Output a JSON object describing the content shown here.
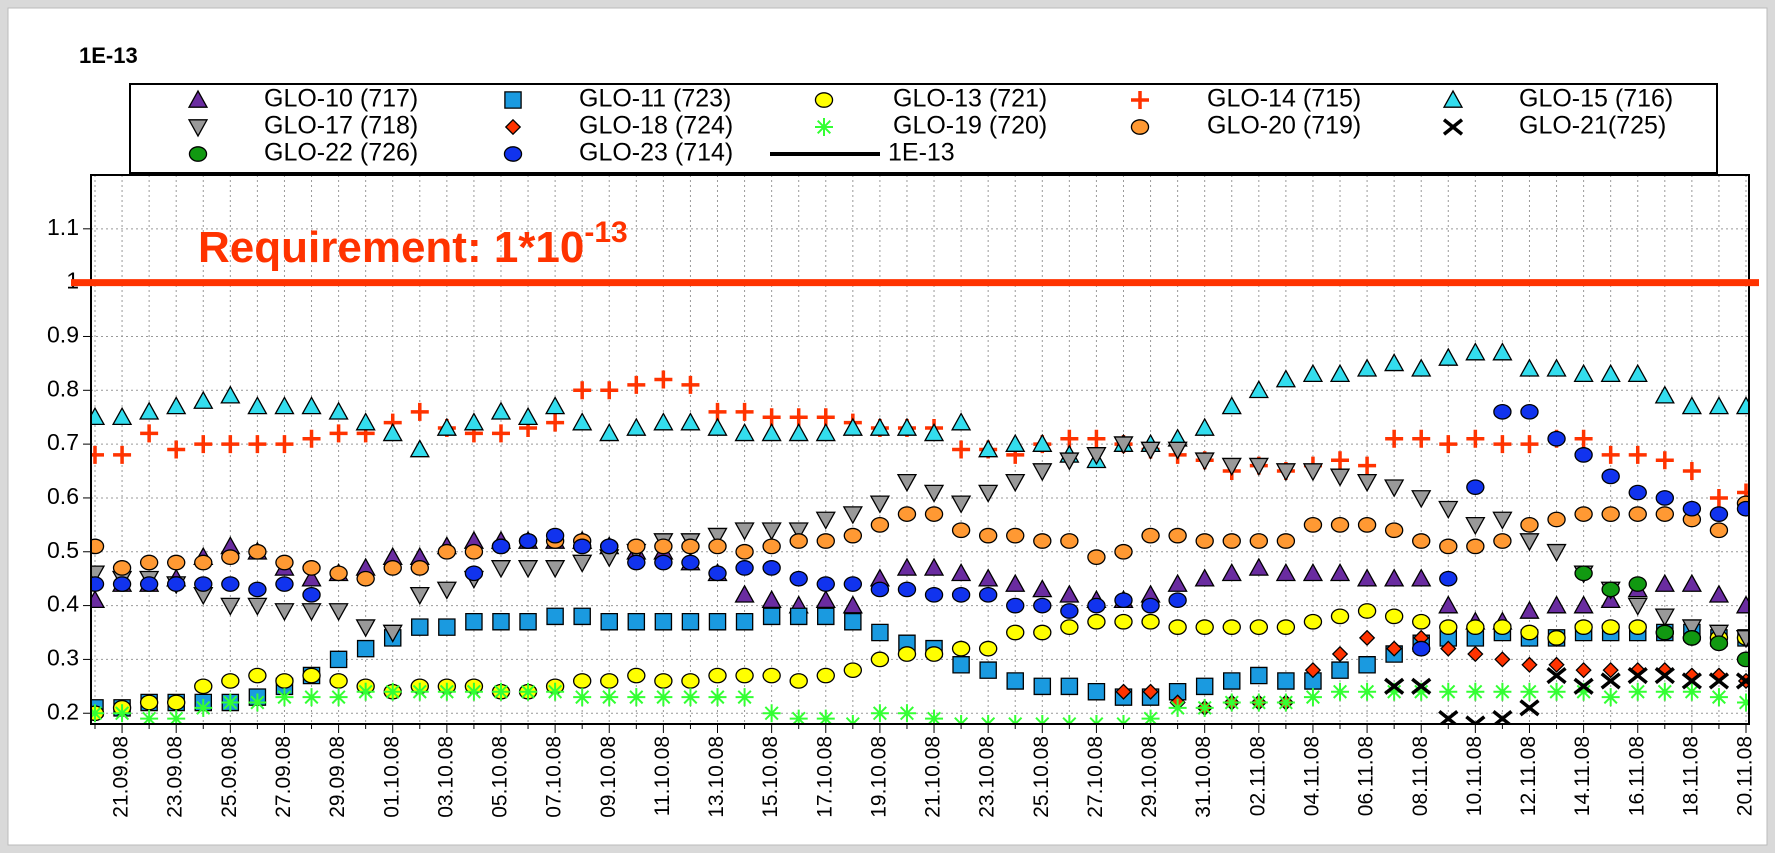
{
  "chart_data": {
    "type": "scatter",
    "y_unit": "1E-13",
    "annotation": {
      "text": "Requirement: 1*10",
      "superscript": "-13",
      "value": 1,
      "color": "#ff3300"
    },
    "reference_legend": {
      "name": "1E-13",
      "color": "#000000"
    },
    "categories": [
      null,
      "21.09.08",
      null,
      "23.09.08",
      null,
      "25.09.08",
      null,
      "27.09.08",
      null,
      "29.09.08",
      null,
      "01.10.08",
      null,
      "03.10.08",
      null,
      "05.10.08",
      null,
      "07.10.08",
      null,
      "09.10.08",
      null,
      "11.10.08",
      null,
      "13.10.08",
      null,
      "15.10.08",
      null,
      "17.10.08",
      null,
      "19.10.08",
      null,
      "21.10.08",
      null,
      "23.10.08",
      null,
      "25.10.08",
      null,
      "27.10.08",
      null,
      "29.10.08",
      null,
      "31.10.08",
      null,
      "02.11.08",
      null,
      "04.11.08",
      null,
      "06.11.08",
      null,
      "08.11.08",
      null,
      "10.11.08",
      null,
      "12.11.08",
      null,
      "14.11.08",
      null,
      "16.11.08",
      null,
      "18.11.08",
      null,
      "20.11.08"
    ],
    "ylim": [
      0.18,
      1.2
    ],
    "yticks": [
      0.2,
      0.3,
      0.4,
      0.5,
      0.6,
      0.7,
      0.8,
      0.9,
      1,
      1.1
    ],
    "grid": true,
    "series": [
      {
        "name": "GLO-10 (717)",
        "color": "#6a2ca0",
        "marker": "triangle-up",
        "values": [
          0.41,
          0.44,
          0.44,
          0.45,
          0.49,
          0.51,
          0.5,
          0.47,
          0.45,
          0.46,
          0.47,
          0.49,
          0.49,
          0.51,
          0.52,
          0.52,
          0.52,
          0.52,
          0.52,
          0.51,
          0.5,
          0.5,
          0.48,
          0.46,
          0.42,
          0.41,
          0.4,
          0.41,
          0.4,
          0.45,
          0.47,
          0.47,
          0.46,
          0.45,
          0.44,
          0.43,
          0.42,
          0.41,
          0.41,
          0.42,
          0.44,
          0.45,
          0.46,
          0.47,
          0.46,
          0.46,
          0.46,
          0.45,
          0.45,
          0.45,
          0.4,
          0.37,
          0.37,
          0.39,
          0.4,
          0.4,
          0.41,
          0.43,
          0.44,
          0.44,
          0.42,
          0.4
        ]
      },
      {
        "name": "GLO-11 (723)",
        "color": "#1a9ae0",
        "marker": "square",
        "values": [
          0.21,
          0.21,
          0.22,
          0.22,
          0.22,
          0.22,
          0.23,
          0.25,
          0.27,
          0.3,
          0.32,
          0.34,
          0.36,
          0.36,
          0.37,
          0.37,
          0.37,
          0.38,
          0.38,
          0.37,
          0.37,
          0.37,
          0.37,
          0.37,
          0.37,
          0.38,
          0.38,
          0.38,
          0.37,
          0.35,
          0.33,
          0.32,
          0.29,
          0.28,
          0.26,
          0.25,
          0.25,
          0.24,
          0.23,
          0.23,
          0.24,
          0.25,
          0.26,
          0.27,
          0.26,
          0.26,
          0.28,
          0.29,
          0.31,
          0.33,
          0.34,
          0.34,
          0.35,
          0.34,
          0.34,
          0.35,
          0.35,
          0.35,
          0.35,
          0.35,
          0.34,
          0.34
        ]
      },
      {
        "name": "GLO-13 (721)",
        "color": "#ffff00",
        "marker": "circle",
        "values": [
          0.2,
          0.21,
          0.22,
          0.22,
          0.25,
          0.26,
          0.27,
          0.26,
          0.27,
          0.26,
          0.25,
          0.24,
          0.25,
          0.25,
          0.25,
          0.24,
          0.24,
          0.25,
          0.26,
          0.26,
          0.27,
          0.26,
          0.26,
          0.27,
          0.27,
          0.27,
          0.26,
          0.27,
          0.28,
          0.3,
          0.31,
          0.31,
          0.32,
          0.32,
          0.35,
          0.35,
          0.36,
          0.37,
          0.37,
          0.37,
          0.36,
          0.36,
          0.36,
          0.36,
          0.36,
          0.37,
          0.38,
          0.39,
          0.38,
          0.37,
          0.36,
          0.36,
          0.36,
          0.35,
          0.34,
          0.36,
          0.36,
          0.36,
          0.35,
          0.34,
          0.34,
          0.34
        ]
      },
      {
        "name": "GLO-14 (715)",
        "color": "#ff3300",
        "marker": "plus",
        "values": [
          0.68,
          0.68,
          0.72,
          0.69,
          0.7,
          0.7,
          0.7,
          0.7,
          0.71,
          0.72,
          0.72,
          0.74,
          0.76,
          0.73,
          0.72,
          0.72,
          0.73,
          0.74,
          0.8,
          0.8,
          0.81,
          0.82,
          0.81,
          0.76,
          0.76,
          0.75,
          0.75,
          0.75,
          0.74,
          0.73,
          0.73,
          0.73,
          0.69,
          0.69,
          0.68,
          0.7,
          0.71,
          0.71,
          0.7,
          0.69,
          0.68,
          0.67,
          0.65,
          0.66,
          0.65,
          0.66,
          0.67,
          0.66,
          0.71,
          0.71,
          0.7,
          0.71,
          0.7,
          0.7,
          0.71,
          0.71,
          0.68,
          0.68,
          0.67,
          0.65,
          0.6,
          0.61
        ]
      },
      {
        "name": "GLO-15 (716)",
        "color": "#33ddee",
        "marker": "triangle-up",
        "values": [
          0.75,
          0.75,
          0.76,
          0.77,
          0.78,
          0.79,
          0.77,
          0.77,
          0.77,
          0.76,
          0.74,
          0.72,
          0.69,
          0.73,
          0.74,
          0.76,
          0.75,
          0.77,
          0.74,
          0.72,
          0.73,
          0.74,
          0.74,
          0.73,
          0.72,
          0.72,
          0.72,
          0.72,
          0.73,
          0.73,
          0.73,
          0.72,
          0.74,
          0.69,
          0.7,
          0.7,
          0.68,
          0.67,
          0.7,
          0.7,
          0.71,
          0.73,
          0.77,
          0.8,
          0.82,
          0.83,
          0.83,
          0.84,
          0.85,
          0.84,
          0.86,
          0.87,
          0.87,
          0.84,
          0.84,
          0.83,
          0.83,
          0.83,
          0.79,
          0.77,
          0.77,
          0.77
        ]
      },
      {
        "name": "GLO-17 (718)",
        "color": "#999999",
        "marker": "triangle-down",
        "values": [
          0.46,
          0.45,
          0.45,
          0.44,
          0.42,
          0.4,
          0.4,
          0.39,
          0.39,
          0.39,
          0.36,
          0.35,
          0.42,
          0.43,
          0.45,
          0.47,
          0.47,
          0.47,
          0.48,
          0.49,
          0.5,
          0.52,
          0.52,
          0.53,
          0.54,
          0.54,
          0.54,
          0.56,
          0.57,
          0.59,
          0.63,
          0.61,
          0.59,
          0.61,
          0.63,
          0.65,
          0.67,
          0.68,
          0.7,
          0.69,
          0.69,
          0.67,
          0.66,
          0.66,
          0.65,
          0.65,
          0.64,
          0.63,
          0.62,
          0.6,
          0.58,
          0.55,
          0.56,
          0.52,
          0.5,
          0.46,
          0.43,
          0.4,
          0.38,
          0.36,
          0.35,
          0.34
        ]
      },
      {
        "name": "GLO-18 (724)",
        "color": "#ff3300",
        "marker": "diamond",
        "values": [
          null,
          null,
          null,
          null,
          null,
          null,
          null,
          null,
          null,
          null,
          null,
          null,
          null,
          null,
          null,
          null,
          null,
          null,
          null,
          null,
          null,
          null,
          null,
          null,
          null,
          null,
          null,
          null,
          null,
          null,
          null,
          null,
          null,
          null,
          null,
          null,
          null,
          null,
          0.24,
          0.24,
          0.22,
          0.21,
          0.22,
          0.22,
          0.22,
          0.28,
          0.31,
          0.34,
          0.32,
          0.34,
          0.32,
          0.31,
          0.3,
          0.29,
          0.29,
          0.28,
          0.28,
          0.28,
          0.28,
          0.27,
          0.27,
          0.26
        ]
      },
      {
        "name": "GLO-19 (720)",
        "color": "#33ff33",
        "marker": "asterisk",
        "values": [
          0.2,
          0.2,
          0.19,
          0.19,
          0.21,
          0.22,
          0.22,
          0.23,
          0.23,
          0.23,
          0.24,
          0.24,
          0.24,
          0.24,
          0.24,
          0.24,
          0.24,
          0.24,
          0.23,
          0.23,
          0.23,
          0.23,
          0.23,
          0.23,
          0.23,
          0.2,
          0.19,
          0.19,
          0.18,
          0.2,
          0.2,
          0.19,
          0.18,
          0.18,
          0.18,
          0.18,
          0.18,
          0.18,
          0.18,
          0.19,
          0.21,
          0.21,
          0.22,
          0.22,
          0.22,
          0.23,
          0.24,
          0.24,
          0.24,
          0.24,
          0.24,
          0.24,
          0.24,
          0.24,
          0.24,
          0.24,
          0.23,
          0.24,
          0.24,
          0.24,
          0.23,
          0.22
        ]
      },
      {
        "name": "GLO-20 (719)",
        "color": "#ff9933",
        "marker": "circle",
        "values": [
          0.51,
          0.47,
          0.48,
          0.48,
          0.48,
          0.49,
          0.5,
          0.48,
          0.47,
          0.46,
          0.45,
          0.47,
          0.47,
          0.5,
          0.5,
          0.51,
          0.52,
          0.52,
          0.52,
          0.51,
          0.51,
          0.51,
          0.51,
          0.51,
          0.5,
          0.51,
          0.52,
          0.52,
          0.53,
          0.55,
          0.57,
          0.57,
          0.54,
          0.53,
          0.53,
          0.52,
          0.52,
          0.49,
          0.5,
          0.53,
          0.53,
          0.52,
          0.52,
          0.52,
          0.52,
          0.55,
          0.55,
          0.55,
          0.54,
          0.52,
          0.51,
          0.51,
          0.52,
          0.55,
          0.56,
          0.57,
          0.57,
          0.57,
          0.57,
          0.56,
          0.54,
          0.59
        ]
      },
      {
        "name": "GLO-21(725)",
        "color": "#000000",
        "marker": "x",
        "values": [
          null,
          null,
          null,
          null,
          null,
          null,
          null,
          null,
          null,
          null,
          null,
          null,
          null,
          null,
          null,
          null,
          null,
          null,
          null,
          null,
          null,
          null,
          null,
          null,
          null,
          null,
          null,
          null,
          null,
          null,
          null,
          null,
          null,
          null,
          null,
          null,
          null,
          null,
          null,
          null,
          null,
          null,
          null,
          null,
          null,
          null,
          null,
          null,
          0.25,
          0.25,
          0.19,
          0.18,
          0.19,
          0.21,
          0.27,
          0.25,
          0.26,
          0.27,
          0.27,
          0.26,
          0.26,
          0.26
        ]
      },
      {
        "name": "GLO-22 (726)",
        "color": "#119911",
        "marker": "circle",
        "values": [
          null,
          null,
          null,
          null,
          null,
          null,
          null,
          null,
          null,
          null,
          null,
          null,
          null,
          null,
          null,
          null,
          null,
          null,
          null,
          null,
          null,
          null,
          null,
          null,
          null,
          null,
          null,
          null,
          null,
          null,
          null,
          null,
          null,
          null,
          null,
          null,
          null,
          null,
          null,
          null,
          null,
          null,
          null,
          null,
          null,
          null,
          null,
          null,
          null,
          null,
          null,
          null,
          null,
          null,
          null,
          0.46,
          0.43,
          0.44,
          0.35,
          0.34,
          0.33,
          0.3
        ]
      },
      {
        "name": "GLO-23 (714)",
        "color": "#1133ee",
        "marker": "circle",
        "values": [
          0.44,
          0.44,
          0.44,
          0.44,
          0.44,
          0.44,
          0.43,
          0.44,
          0.42,
          null,
          null,
          null,
          null,
          null,
          0.46,
          0.51,
          0.52,
          0.53,
          0.51,
          0.51,
          0.48,
          0.48,
          0.48,
          0.46,
          0.47,
          0.47,
          0.45,
          0.44,
          0.44,
          0.43,
          0.43,
          0.42,
          0.42,
          0.42,
          0.4,
          0.4,
          0.39,
          0.4,
          0.41,
          0.4,
          0.41,
          null,
          null,
          null,
          null,
          null,
          null,
          null,
          null,
          0.32,
          0.45,
          0.62,
          0.76,
          0.76,
          0.71,
          0.68,
          0.64,
          0.61,
          0.6,
          0.58,
          0.57,
          0.58
        ]
      }
    ]
  }
}
